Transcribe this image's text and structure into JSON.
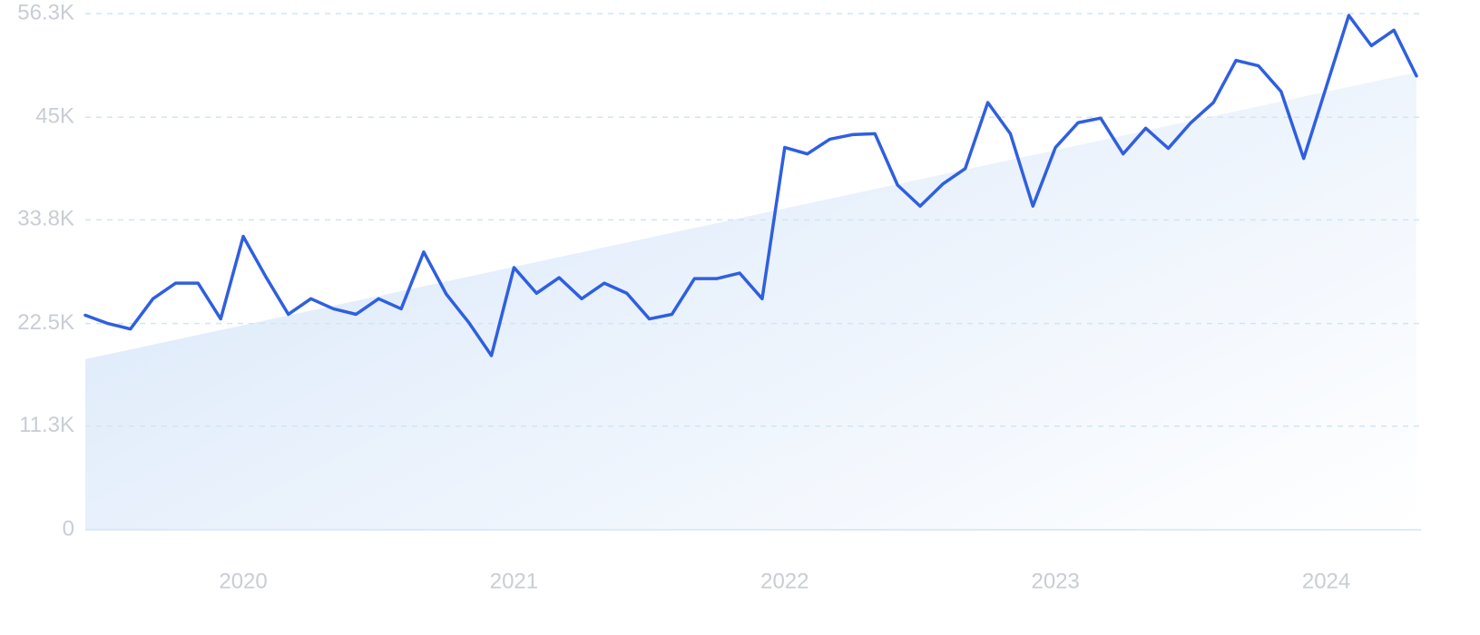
{
  "chart_data": {
    "type": "line",
    "categories": [
      null,
      null,
      null,
      null,
      null,
      null,
      null,
      "2020",
      null,
      null,
      null,
      null,
      null,
      null,
      null,
      null,
      null,
      null,
      null,
      "2021",
      null,
      null,
      null,
      null,
      null,
      null,
      null,
      null,
      null,
      null,
      null,
      "2022",
      null,
      null,
      null,
      null,
      null,
      null,
      null,
      null,
      null,
      null,
      null,
      "2023",
      null,
      null,
      null,
      null,
      null,
      null,
      null,
      null,
      null,
      null,
      null,
      "2024",
      null,
      null,
      null,
      null
    ],
    "series": [
      {
        "color": "#2f5fe0",
        "values": [
          23400,
          22500,
          21900,
          25200,
          26900,
          26900,
          23000,
          32000,
          27600,
          23500,
          25200,
          24100,
          23500,
          25200,
          24100,
          30300,
          25700,
          22600,
          19000,
          28600,
          25800,
          27500,
          25200,
          26900,
          25800,
          23000,
          23500,
          27400,
          27400,
          28000,
          25200,
          41700,
          41000,
          42600,
          43100,
          43200,
          37600,
          35300,
          37700,
          39400,
          46600,
          43200,
          35300,
          41700,
          44400,
          44900,
          41000,
          43800,
          41600,
          44400,
          46600,
          51200,
          50600,
          47800,
          40500,
          48300,
          56100,
          52800,
          54500,
          49500
        ]
      }
    ],
    "trend_values": [
      18600,
      49900
    ],
    "trend_color": "#dce9fa",
    "ylim": [
      0,
      56300
    ],
    "yticks": [
      0,
      {
        "value": 11300,
        "label": "11.3K"
      },
      {
        "value": 22500,
        "label": "22.5K"
      },
      {
        "value": 33800,
        "label": "33.8K"
      },
      {
        "value": 45000,
        "label": "45K"
      },
      {
        "value": 56300,
        "label": "56.3K"
      }
    ],
    "grid": true
  }
}
